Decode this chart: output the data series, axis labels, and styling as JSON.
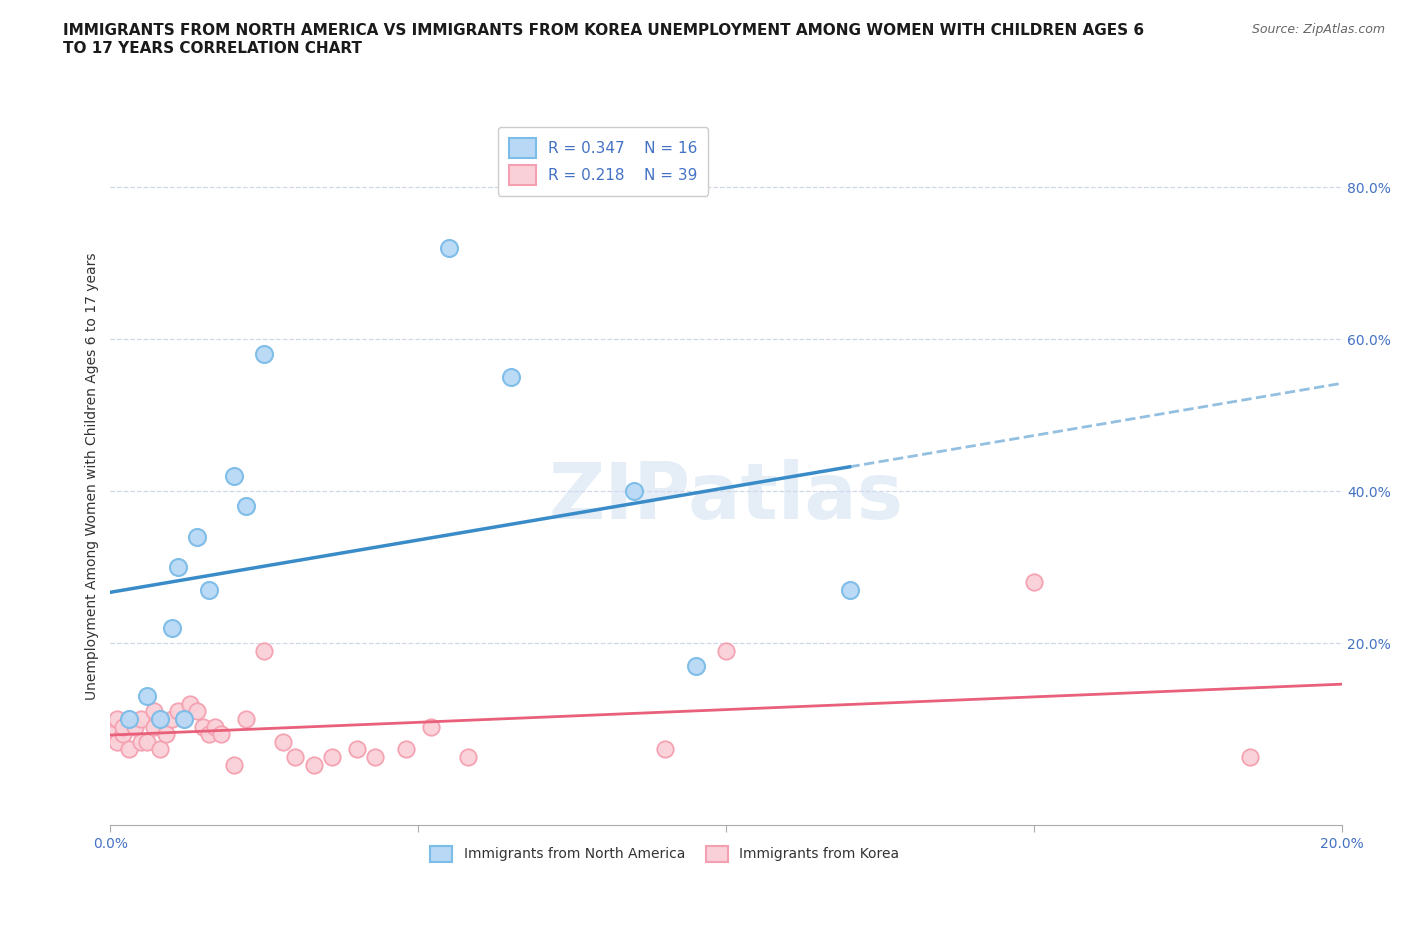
{
  "title": "IMMIGRANTS FROM NORTH AMERICA VS IMMIGRANTS FROM KOREA UNEMPLOYMENT AMONG WOMEN WITH CHILDREN AGES 6\nTO 17 YEARS CORRELATION CHART",
  "source": "Source: ZipAtlas.com",
  "ylabel": "Unemployment Among Women with Children Ages 6 to 17 years",
  "xlim": [
    0.0,
    0.2
  ],
  "ylim": [
    -0.04,
    0.88
  ],
  "xticks": [
    0.0,
    0.05,
    0.1,
    0.15,
    0.2
  ],
  "xticklabels": [
    "0.0%",
    "",
    "",
    "",
    "20.0%"
  ],
  "yticks_right": [
    0.2,
    0.4,
    0.6,
    0.8
  ],
  "ytick_labels_right": [
    "20.0%",
    "40.0%",
    "60.0%",
    "80.0%"
  ],
  "watermark": "ZIPatlas",
  "north_america_x": [
    0.003,
    0.006,
    0.008,
    0.01,
    0.011,
    0.012,
    0.014,
    0.016,
    0.02,
    0.022,
    0.025,
    0.055,
    0.065,
    0.085,
    0.095,
    0.12
  ],
  "north_america_y": [
    0.1,
    0.13,
    0.1,
    0.22,
    0.3,
    0.1,
    0.34,
    0.27,
    0.42,
    0.38,
    0.58,
    0.72,
    0.55,
    0.4,
    0.17,
    0.27
  ],
  "korea_x": [
    0.0,
    0.001,
    0.001,
    0.002,
    0.002,
    0.003,
    0.004,
    0.005,
    0.005,
    0.006,
    0.007,
    0.007,
    0.008,
    0.009,
    0.01,
    0.011,
    0.012,
    0.013,
    0.014,
    0.015,
    0.016,
    0.017,
    0.018,
    0.02,
    0.022,
    0.025,
    0.028,
    0.03,
    0.033,
    0.036,
    0.04,
    0.043,
    0.048,
    0.052,
    0.058,
    0.09,
    0.1,
    0.15,
    0.185
  ],
  "korea_y": [
    0.08,
    0.07,
    0.1,
    0.08,
    0.09,
    0.06,
    0.09,
    0.07,
    0.1,
    0.07,
    0.09,
    0.11,
    0.06,
    0.08,
    0.1,
    0.11,
    0.1,
    0.12,
    0.11,
    0.09,
    0.08,
    0.09,
    0.08,
    0.04,
    0.1,
    0.19,
    0.07,
    0.05,
    0.04,
    0.05,
    0.06,
    0.05,
    0.06,
    0.09,
    0.05,
    0.06,
    0.19,
    0.28,
    0.05
  ],
  "na_R": 0.347,
  "na_N": 16,
  "korea_R": 0.218,
  "korea_N": 39,
  "na_color": "#7bbce8",
  "korea_color": "#f4a0b0",
  "na_line_color": "#3a8cc8",
  "korea_line_color": "#e8607a",
  "na_marker_face": "#b8d8f5",
  "korea_marker_face": "#fad0d8",
  "grid_color": "#d0d8e8",
  "background_color": "#ffffff",
  "title_fontsize": 11,
  "axis_label_fontsize": 10,
  "tick_fontsize": 10,
  "tick_color": "#4472c4"
}
